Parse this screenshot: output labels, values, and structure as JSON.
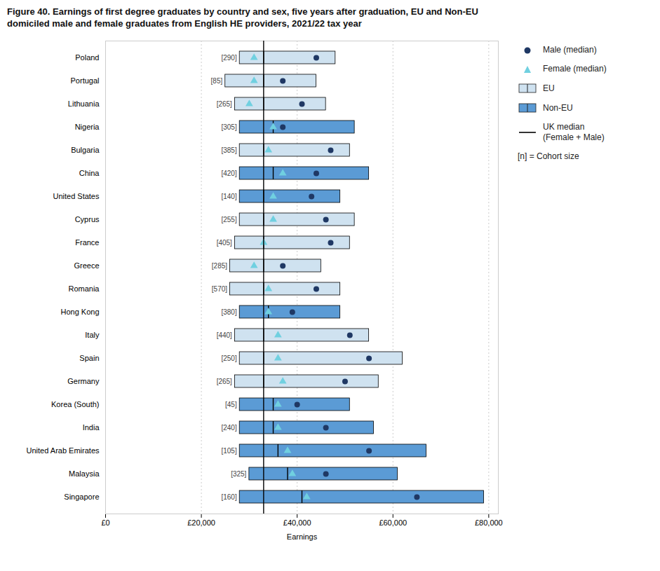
{
  "chart_data": {
    "type": "box",
    "orientation": "horizontal",
    "title": "Figure 40. Earnings of first degree graduates by country and sex, five years after graduation, EU and Non-EU",
    "subtitle": "domiciled male and female graduates from English HE providers, 2021/22 tax year",
    "xlabel": "Earnings",
    "categories": [
      "Poland",
      "Portugal",
      "Lithuania",
      "Nigeria",
      "Bulgaria",
      "China",
      "United States",
      "Cyprus",
      "France",
      "Greece",
      "Romania",
      "Hong Kong",
      "Italy",
      "Spain",
      "Germany",
      "Korea (South)",
      "India",
      "United Arab Emirates",
      "Malaysia",
      "Singapore"
    ],
    "box_low": [
      28000,
      25000,
      27000,
      28000,
      28000,
      28000,
      28000,
      28000,
      27000,
      26000,
      26000,
      28000,
      27000,
      28000,
      27000,
      28000,
      28000,
      28000,
      30000,
      28000
    ],
    "box_median": [
      33000,
      33000,
      33000,
      35000,
      33000,
      35000,
      33000,
      33000,
      33000,
      33000,
      33000,
      34000,
      33000,
      33000,
      33000,
      35000,
      35000,
      36000,
      38000,
      41000
    ],
    "box_high": [
      48000,
      44000,
      46000,
      52000,
      51000,
      55000,
      49000,
      52000,
      51000,
      45000,
      49000,
      49000,
      55000,
      62000,
      57000,
      51000,
      56000,
      67000,
      61000,
      79000
    ],
    "box_group": [
      "EU",
      "EU",
      "EU",
      "Non-EU",
      "EU",
      "Non-EU",
      "Non-EU",
      "EU",
      "EU",
      "EU",
      "EU",
      "Non-EU",
      "EU",
      "EU",
      "EU",
      "Non-EU",
      "Non-EU",
      "Non-EU",
      "Non-EU",
      "Non-EU"
    ],
    "box_groups": [
      {
        "name": "EU",
        "color": "#cfe2f0"
      },
      {
        "name": "Non-EU",
        "color": "#5b9bd5"
      }
    ],
    "series": [
      {
        "name": "Male (median)",
        "color": "#1f3864",
        "marker": "circle",
        "values": [
          44000,
          37000,
          41000,
          37000,
          47000,
          44000,
          43000,
          46000,
          47000,
          37000,
          44000,
          39000,
          51000,
          55000,
          50000,
          40000,
          46000,
          55000,
          46000,
          65000
        ]
      },
      {
        "name": "Female (median)",
        "color": "#70d0e0",
        "marker": "triangle",
        "values": [
          31000,
          31000,
          30000,
          35000,
          34000,
          37000,
          35000,
          35000,
          33000,
          31000,
          34000,
          34000,
          36000,
          36000,
          37000,
          36000,
          36000,
          38000,
          39000,
          42000
        ]
      }
    ],
    "cohort": {
      "values": [
        290,
        85,
        265,
        305,
        385,
        420,
        140,
        255,
        405,
        285,
        570,
        380,
        440,
        250,
        265,
        45,
        240,
        105,
        325,
        160
      ],
      "value_labels": [
        "[290]",
        "[85]",
        "[265]",
        "[305]",
        "[385]",
        "[420]",
        "[140]",
        "[255]",
        "[405]",
        "[285]",
        "[570]",
        "[380]",
        "[440]",
        "[250]",
        "[265]",
        "[45]",
        "[240]",
        "[105]",
        "[325]",
        "[160]"
      ]
    },
    "reference_lines": [
      {
        "value": 33000,
        "color": "#000000",
        "label_lines": [
          "UK median",
          "(Female + Male)"
        ]
      }
    ],
    "note": "[n] = Cohort size",
    "xlim": [
      0,
      82000
    ],
    "xticks": [
      {
        "value": 0,
        "label": "£0"
      },
      {
        "value": 20000,
        "label": "£20,000"
      },
      {
        "value": 40000,
        "label": "£40,000"
      },
      {
        "value": 60000,
        "label": "£60,000"
      },
      {
        "value": 80000,
        "label": "£80,000"
      }
    ],
    "grid": true,
    "legend": "right"
  }
}
